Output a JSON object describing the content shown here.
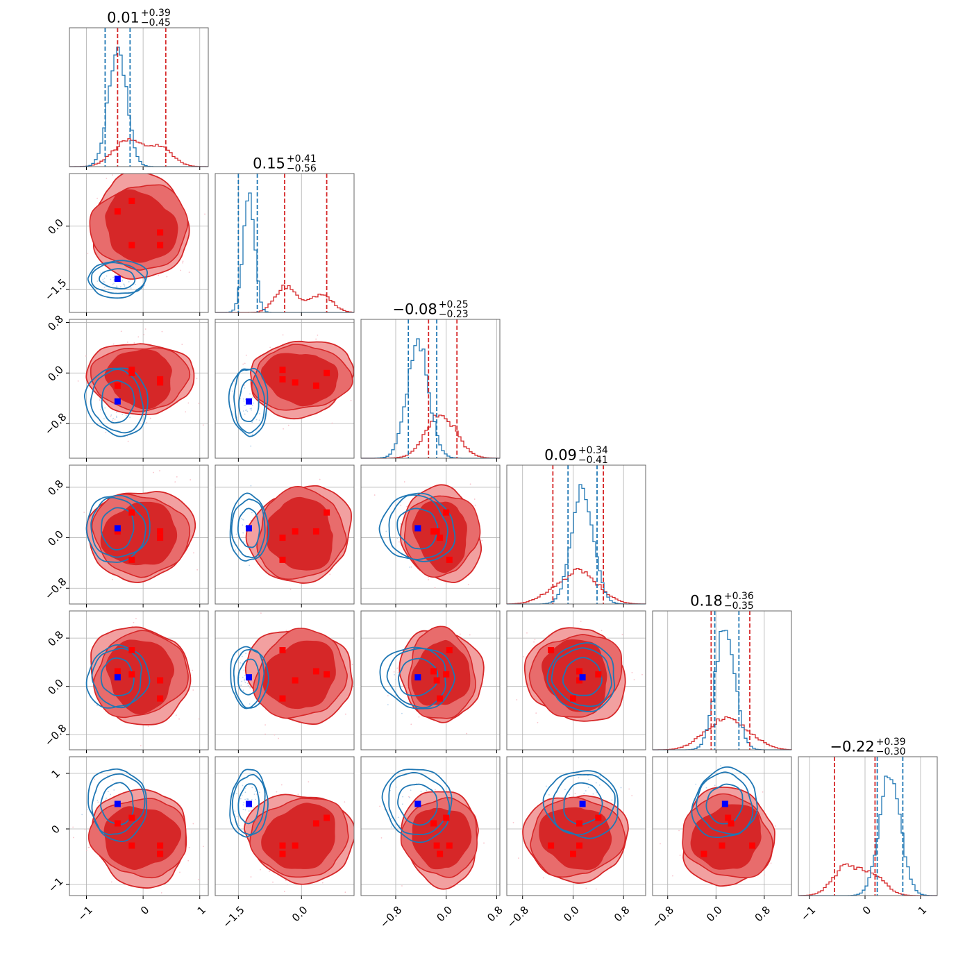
{
  "colors": {
    "red": "#d62728",
    "red_fill_outer": "#f2a0a0",
    "red_fill_mid": "#e86c6c",
    "red_fill_inner": "#d62728",
    "blue": "#1f77b4",
    "blue_marker": "#0000ff",
    "grid": "#b0b0b0",
    "frame": "#666666"
  },
  "chart_data": {
    "type": "corner",
    "n_params": 6,
    "grid": true,
    "titles": [
      {
        "median": "0.01",
        "plus": "+0.39",
        "minus": "−0.45"
      },
      {
        "median": "0.15",
        "plus": "+0.41",
        "minus": "−0.56"
      },
      {
        "median": "−0.08",
        "plus": "+0.25",
        "minus": "−0.23"
      },
      {
        "median": "0.09",
        "plus": "+0.34",
        "minus": "−0.41"
      },
      {
        "median": "0.18",
        "plus": "+0.36",
        "minus": "−0.35"
      },
      {
        "median": "−0.22",
        "plus": "+0.39",
        "minus": "−0.30"
      }
    ],
    "ranges": [
      [
        -1.3,
        1.15
      ],
      [
        -2.05,
        1.25
      ],
      [
        -1.35,
        0.85
      ],
      [
        -1.05,
        1.15
      ],
      [
        -1.05,
        1.25
      ],
      [
        -1.2,
        1.3
      ]
    ],
    "ticks": [
      {
        "values": [
          -1,
          0,
          1
        ],
        "labels": [
          "−1",
          "0",
          "1"
        ]
      },
      {
        "values": [
          -1.5,
          0.0
        ],
        "labels": [
          "−1.5",
          "0.0"
        ]
      },
      {
        "values": [
          -0.8,
          0.0,
          0.8
        ],
        "labels": [
          "−0.8",
          "0.0",
          "0.8"
        ]
      },
      {
        "values": [
          -0.8,
          0.0,
          0.8
        ],
        "labels": [
          "−0.8",
          "0.0",
          "0.8"
        ]
      },
      {
        "values": [
          -0.8,
          0.0,
          0.8
        ],
        "labels": [
          "−0.8",
          "0.0",
          "0.8"
        ]
      },
      {
        "values": [
          -1,
          0,
          1
        ],
        "labels": [
          "−1",
          "0",
          "1"
        ]
      }
    ],
    "red_modes": [
      [
        -0.45,
        0.35,
        -0.2,
        0.1,
        0.25,
        0.1
      ],
      [
        -0.2,
        0.6,
        0.0,
        0.4,
        0.2,
        0.2
      ],
      [
        0.3,
        -0.15,
        -0.15,
        0.1,
        0.1,
        -0.3
      ],
      [
        0.3,
        -0.45,
        -0.1,
        0.0,
        -0.2,
        -0.45
      ],
      [
        -0.2,
        -0.45,
        0.05,
        -0.35,
        0.6,
        -0.3
      ]
    ],
    "blue_point": [
      -0.45,
      -1.25,
      -0.45,
      0.15,
      0.15,
      0.45
    ],
    "diag_lines": [
      {
        "red": [
          -0.45,
          0.4
        ],
        "blue": [
          -0.67,
          -0.23
        ]
      },
      {
        "red": [
          -0.4,
          0.6
        ],
        "blue": [
          -1.5,
          -1.05
        ]
      },
      {
        "red": [
          -0.28,
          0.17
        ],
        "blue": [
          -0.6,
          -0.15
        ]
      },
      {
        "red": [
          -0.32,
          0.48
        ],
        "blue": [
          -0.08,
          0.38
        ]
      },
      {
        "red": [
          -0.08,
          0.56
        ],
        "blue": [
          -0.02,
          0.38
        ]
      },
      {
        "red": [
          -0.55,
          0.18
        ],
        "blue": [
          0.22,
          0.68
        ]
      }
    ]
  }
}
